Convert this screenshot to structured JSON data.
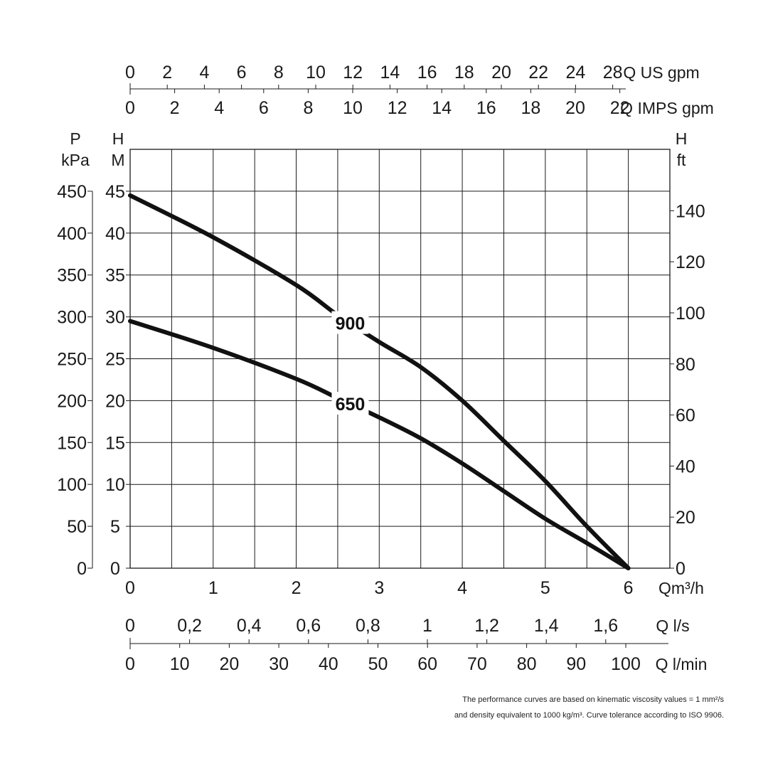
{
  "chart_data": {
    "type": "line",
    "title": "",
    "grid": true,
    "x_axis": {
      "label": "Qm³/h",
      "range": [
        0,
        6.5
      ],
      "ticks": [
        "0",
        "1",
        "2",
        "3",
        "4",
        "5",
        "6"
      ]
    },
    "y_axis_left_head": {
      "label_top": "H",
      "label_unit": "M",
      "range": [
        0,
        50
      ],
      "ticks": [
        "0",
        "5",
        "10",
        "15",
        "20",
        "25",
        "30",
        "35",
        "40",
        "45"
      ]
    },
    "y_axis_left_pressure": {
      "label_top": "P",
      "label_unit": "kPa",
      "ticks": [
        "0",
        "50",
        "100",
        "150",
        "200",
        "250",
        "300",
        "350",
        "400",
        "450"
      ]
    },
    "y_axis_right_feet": {
      "label_top": "H",
      "label_unit": "ft",
      "ticks": [
        "0",
        "20",
        "40",
        "60",
        "80",
        "100",
        "120",
        "140"
      ]
    },
    "top_axis_us_gpm": {
      "label": "Q US gpm",
      "ticks": [
        "0",
        "2",
        "4",
        "6",
        "8",
        "10",
        "12",
        "14",
        "16",
        "18",
        "20",
        "22",
        "24",
        "28"
      ]
    },
    "top_axis_imps_gpm": {
      "label": "Q IMPS gpm",
      "ticks": [
        "0",
        "2",
        "4",
        "6",
        "8",
        "10",
        "12",
        "14",
        "16",
        "18",
        "20",
        "22"
      ]
    },
    "bottom_axis_ls": {
      "label": "Q l/s",
      "ticks": [
        "0",
        "0,2",
        "0,4",
        "0,6",
        "0,8",
        "1",
        "1,2",
        "1,4",
        "1,6"
      ]
    },
    "bottom_axis_lmin": {
      "label": "Q l/min",
      "ticks": [
        "0",
        "10",
        "20",
        "30",
        "40",
        "50",
        "60",
        "70",
        "80",
        "90",
        "100"
      ]
    },
    "series": [
      {
        "name": "900",
        "x": [
          0,
          1,
          2,
          2.5,
          3,
          3.5,
          4,
          4.5,
          5,
          5.5,
          6
        ],
        "y": [
          44.5,
          39.5,
          33.8,
          30.2,
          27,
          24,
          20,
          15.2,
          10.4,
          5,
          0
        ]
      },
      {
        "name": "650",
        "x": [
          0,
          1,
          2,
          2.5,
          3,
          3.5,
          4,
          4.5,
          5,
          5.5,
          6
        ],
        "y": [
          29.5,
          26.3,
          22.6,
          20.3,
          18,
          15.5,
          12.5,
          9.2,
          5.9,
          3,
          0
        ]
      }
    ]
  },
  "footnote": {
    "line1": "The performance curves are based on kinematic viscosity values = 1 mm²/s",
    "line2": "and density equivalent to 1000 kg/m³. Curve tolerance according to ISO 9906."
  }
}
